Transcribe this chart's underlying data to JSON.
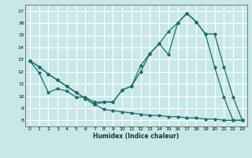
{
  "xlabel": "Humidex (Indice chaleur)",
  "bg_color": "#c8e8e8",
  "grid_color": "#aad4d4",
  "line_color": "#1a6b6b",
  "xlim": [
    -0.5,
    23.5
  ],
  "ylim": [
    7.5,
    17.5
  ],
  "xticks": [
    0,
    1,
    2,
    3,
    4,
    5,
    6,
    7,
    8,
    9,
    10,
    11,
    12,
    13,
    14,
    15,
    16,
    17,
    18,
    19,
    20,
    21,
    22,
    23
  ],
  "yticks": [
    8,
    9,
    10,
    11,
    12,
    13,
    14,
    15,
    16,
    17
  ],
  "line1_x": [
    0,
    1,
    2,
    3,
    4,
    5,
    6,
    7,
    8,
    9,
    10,
    11,
    12,
    13,
    14,
    15,
    16,
    17,
    18,
    19,
    20,
    21,
    22,
    23
  ],
  "line1_y": [
    12.9,
    11.9,
    10.3,
    10.6,
    10.4,
    9.9,
    9.9,
    9.5,
    9.5,
    9.5,
    10.5,
    10.8,
    12.5,
    13.5,
    14.3,
    13.4,
    16.0,
    16.8,
    16.1,
    15.1,
    12.4,
    9.9,
    8.0,
    8.0
  ],
  "line2_x": [
    0,
    1,
    2,
    3,
    4,
    5,
    6,
    7,
    8,
    9,
    10,
    11,
    12,
    13,
    14,
    15,
    16,
    17,
    18,
    19,
    20,
    21,
    22,
    23
  ],
  "line2_y": [
    12.9,
    12.4,
    11.8,
    11.3,
    10.8,
    10.3,
    9.8,
    9.3,
    9.5,
    9.5,
    10.5,
    10.8,
    12.0,
    13.5,
    14.3,
    15.3,
    16.0,
    16.8,
    16.1,
    15.1,
    15.1,
    12.4,
    9.9,
    8.0
  ],
  "line3_x": [
    0,
    1,
    2,
    3,
    4,
    5,
    6,
    7,
    8,
    9,
    10,
    11,
    12,
    13,
    14,
    15,
    16,
    17,
    18,
    19,
    20,
    21,
    22,
    23
  ],
  "line3_y": [
    12.9,
    12.4,
    11.8,
    11.3,
    10.8,
    10.3,
    9.8,
    9.3,
    8.9,
    8.8,
    8.7,
    8.6,
    8.5,
    8.4,
    8.4,
    8.3,
    8.3,
    8.2,
    8.2,
    8.1,
    8.1,
    8.0,
    8.0,
    8.0
  ]
}
